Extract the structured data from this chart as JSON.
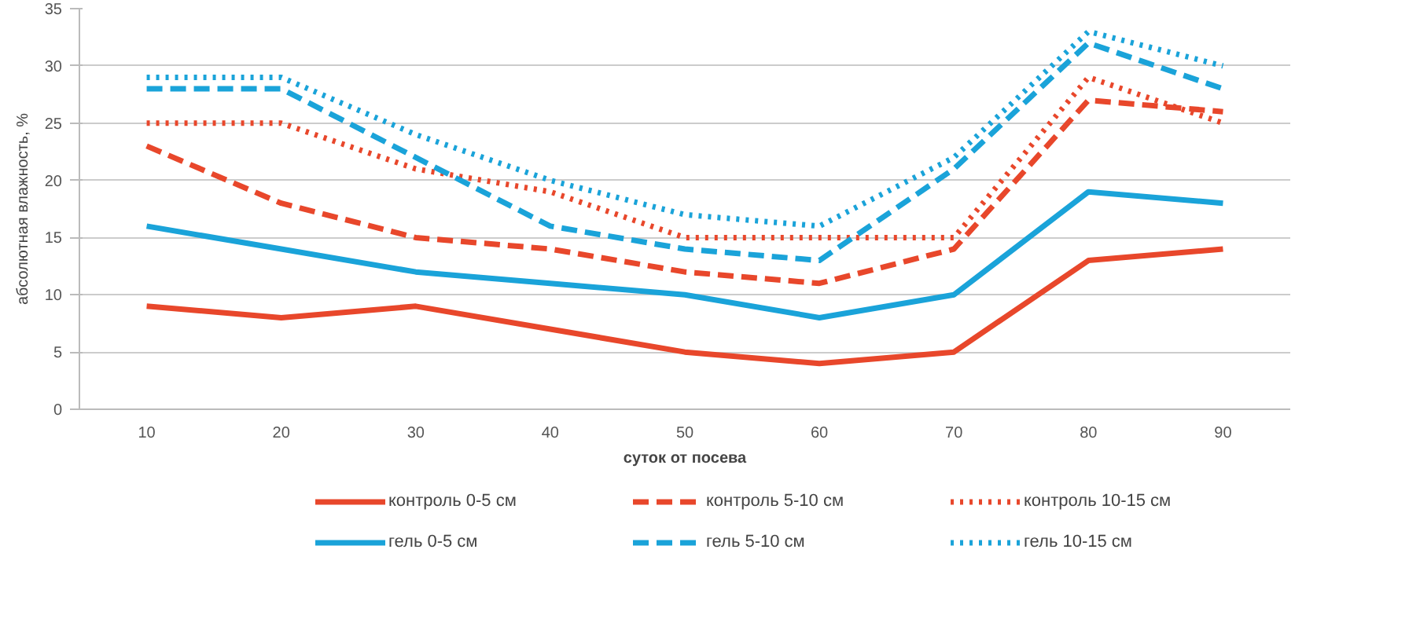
{
  "chart_data": {
    "type": "line",
    "xlabel": "суток от посева",
    "ylabel": "абсолютная влажность, %",
    "categories": [
      "10",
      "20",
      "30",
      "40",
      "50",
      "60",
      "70",
      "80",
      "90"
    ],
    "ylim": [
      0,
      35
    ],
    "yticks": [
      0,
      5,
      10,
      15,
      20,
      25,
      30,
      35
    ],
    "grid": "y",
    "legend": "bottom",
    "marker": "none",
    "series": [
      {
        "name": "контроль 0-5 см",
        "color": "#e8472b",
        "line_style": "solid",
        "values": [
          9,
          8,
          9,
          7,
          5,
          4,
          5,
          13,
          14
        ]
      },
      {
        "name": "контроль 5-10 см",
        "color": "#e8472b",
        "line_style": "dashed",
        "values": [
          23,
          18,
          15,
          14,
          12,
          11,
          14,
          27,
          26
        ]
      },
      {
        "name": "контроль 10-15 см",
        "color": "#e8472b",
        "line_style": "dotted",
        "values": [
          25,
          25,
          21,
          19,
          15,
          15,
          15,
          29,
          25
        ]
      },
      {
        "name": "гель 0-5 см",
        "color": "#1aa3d9",
        "line_style": "solid",
        "values": [
          16,
          14,
          12,
          11,
          10,
          8,
          10,
          19,
          18
        ]
      },
      {
        "name": "гель 5-10 см",
        "color": "#1aa3d9",
        "line_style": "dashed",
        "values": [
          28,
          28,
          22,
          16,
          14,
          13,
          21,
          32,
          28
        ]
      },
      {
        "name": "гель 10-15 см",
        "color": "#1aa3d9",
        "line_style": "dotted",
        "values": [
          29,
          29,
          24,
          20,
          17,
          16,
          22,
          33,
          30
        ]
      }
    ]
  }
}
